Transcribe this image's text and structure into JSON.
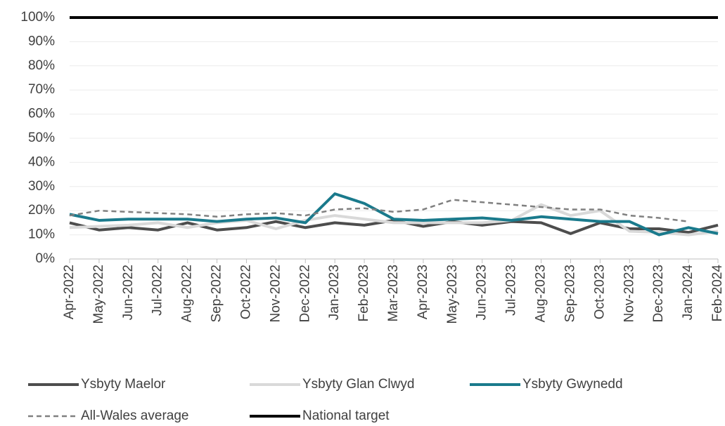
{
  "chart_data": {
    "type": "line",
    "categories": [
      "Apr-2022",
      "May-2022",
      "Jun-2022",
      "Jul-2022",
      "Aug-2022",
      "Sep-2022",
      "Oct-2022",
      "Nov-2022",
      "Dec-2022",
      "Jan-2023",
      "Feb-2023",
      "Mar-2023",
      "Apr-2023",
      "May-2023",
      "Jun-2023",
      "Jul-2023",
      "Aug-2023",
      "Sep-2023",
      "Oct-2023",
      "Nov-2023",
      "Dec-2023",
      "Jan-2024",
      "Feb-2024"
    ],
    "series": [
      {
        "name": "Ysbyty Maelor",
        "color": "#4d4d4d",
        "dash": false,
        "values": [
          15,
          12,
          13,
          12,
          15,
          12,
          13,
          15.5,
          13,
          15,
          14,
          16,
          13.5,
          15.5,
          14,
          15.5,
          15,
          10.5,
          15,
          12.5,
          12.5,
          11,
          14
        ]
      },
      {
        "name": "Ysbyty Glan Clwyd",
        "color": "#d9d9d9",
        "dash": false,
        "values": [
          13,
          13.5,
          14,
          15,
          13,
          15,
          16,
          12.5,
          16,
          18,
          16.5,
          15,
          15,
          15,
          15,
          16,
          22.5,
          18,
          20,
          11.5,
          11,
          10,
          11.5
        ]
      },
      {
        "name": "Ysbyty Gwynedd",
        "color": "#1a7a8c",
        "dash": false,
        "values": [
          18.5,
          16,
          16.5,
          16.5,
          16.5,
          15.5,
          16.5,
          17,
          15,
          27,
          23,
          16.5,
          16,
          16.5,
          17,
          16,
          17.5,
          16.5,
          15.5,
          15.5,
          10,
          13,
          10.5
        ]
      },
      {
        "name": "All-Wales average",
        "color": "#808080",
        "dash": true,
        "values": [
          18,
          20,
          19.5,
          19,
          18.5,
          17.5,
          18.5,
          19,
          18,
          20.5,
          21,
          19.5,
          20.5,
          24.5,
          23.5,
          22.5,
          21.5,
          20.5,
          20.5,
          18,
          17,
          15.5,
          null
        ]
      },
      {
        "name": "National target",
        "color": "#000000",
        "dash": false,
        "values": [
          100,
          100,
          100,
          100,
          100,
          100,
          100,
          100,
          100,
          100,
          100,
          100,
          100,
          100,
          100,
          100,
          100,
          100,
          100,
          100,
          100,
          100,
          100
        ]
      }
    ],
    "ylim": [
      0,
      100
    ],
    "yticks": [
      {
        "value": 0,
        "label": "0%"
      },
      {
        "value": 10,
        "label": "10%"
      },
      {
        "value": 20,
        "label": "20%"
      },
      {
        "value": 30,
        "label": "30%"
      },
      {
        "value": 40,
        "label": "40%"
      },
      {
        "value": 50,
        "label": "50%"
      },
      {
        "value": 60,
        "label": "60%"
      },
      {
        "value": 70,
        "label": "70%"
      },
      {
        "value": 80,
        "label": "80%"
      },
      {
        "value": 90,
        "label": "90%"
      },
      {
        "value": 100,
        "label": "100%"
      }
    ],
    "grid": true,
    "legend": "bottom"
  }
}
